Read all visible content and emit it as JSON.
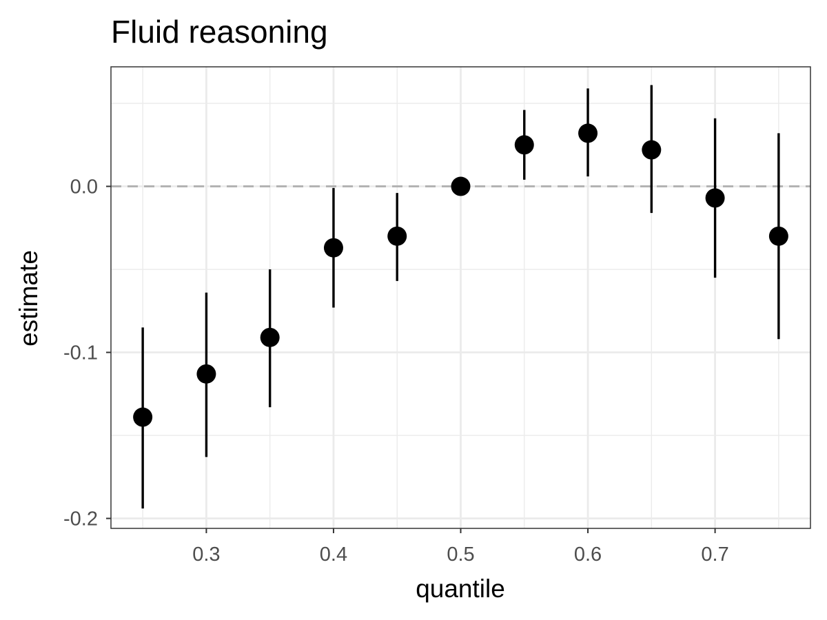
{
  "chart_data": {
    "type": "scatter",
    "title": "Fluid reasoning",
    "xlabel": "quantile",
    "ylabel": "estimate",
    "xlim": [
      0.225,
      0.775
    ],
    "ylim": [
      -0.206,
      0.072
    ],
    "x_ticks": [
      0.3,
      0.4,
      0.5,
      0.6,
      0.7
    ],
    "x_tick_labels": [
      "0.3",
      "0.4",
      "0.5",
      "0.6",
      "0.7"
    ],
    "y_ticks": [
      -0.2,
      -0.1,
      0.0
    ],
    "y_tick_labels": [
      "-0.2",
      "-0.1",
      "0.0"
    ],
    "x_minor_ticks": [
      0.25,
      0.35,
      0.45,
      0.55,
      0.65,
      0.75
    ],
    "y_minor_ticks": [
      -0.15,
      -0.05,
      0.05
    ],
    "grid": true,
    "reference_line": {
      "y": 0.0,
      "style": "dashed",
      "color": "#b3b3b3"
    },
    "point_color": "#000000",
    "points": [
      {
        "x": 0.25,
        "y": -0.139,
        "lower": -0.194,
        "upper": -0.085
      },
      {
        "x": 0.3,
        "y": -0.113,
        "lower": -0.163,
        "upper": -0.064
      },
      {
        "x": 0.35,
        "y": -0.091,
        "lower": -0.133,
        "upper": -0.05
      },
      {
        "x": 0.4,
        "y": -0.037,
        "lower": -0.073,
        "upper": -0.001
      },
      {
        "x": 0.45,
        "y": -0.03,
        "lower": -0.057,
        "upper": -0.004
      },
      {
        "x": 0.5,
        "y": 0.0,
        "lower": 0.0,
        "upper": 0.0
      },
      {
        "x": 0.55,
        "y": 0.025,
        "lower": 0.004,
        "upper": 0.046
      },
      {
        "x": 0.6,
        "y": 0.032,
        "lower": 0.006,
        "upper": 0.059
      },
      {
        "x": 0.65,
        "y": 0.022,
        "lower": -0.016,
        "upper": 0.061
      },
      {
        "x": 0.7,
        "y": -0.007,
        "lower": -0.055,
        "upper": 0.041
      },
      {
        "x": 0.75,
        "y": -0.03,
        "lower": -0.092,
        "upper": 0.032
      }
    ]
  }
}
